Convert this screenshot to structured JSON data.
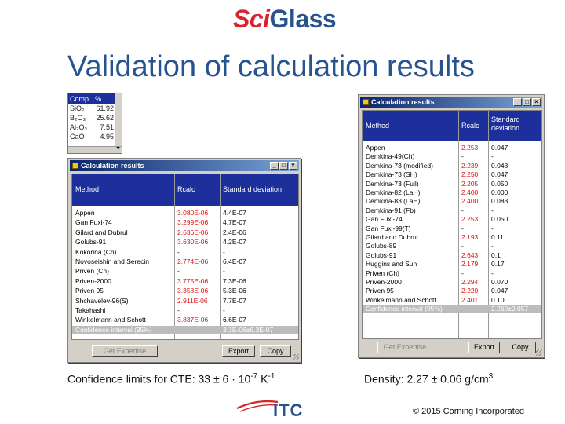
{
  "header": {
    "logo": {
      "part1": "Sci",
      "part2": "Glass"
    },
    "title": "Validation of calculation results"
  },
  "composition_grid": {
    "headers": [
      "Comp.",
      "%"
    ],
    "rows": [
      [
        "SiO₂",
        "61.92"
      ],
      [
        "B₂O₃",
        "25.62"
      ],
      [
        "Al₂O₃",
        "7.51"
      ],
      [
        "CaO",
        "4.95"
      ]
    ]
  },
  "left_window": {
    "title": "Calculation results",
    "headers": {
      "method": "Method",
      "value": "Rcalc",
      "dev": "Standard deviation"
    },
    "rows": [
      {
        "method": "Appen",
        "value": "3.080E-06",
        "dev": "4.4E-07"
      },
      {
        "method": "Gan Fuxi-74",
        "value": "3.299E-06",
        "dev": "4.7E-07"
      },
      {
        "method": "Gilard and Dubrul",
        "value": "2.636E-06",
        "dev": "2.4E-06"
      },
      {
        "method": "Golubs-91",
        "value": "3.630E-06",
        "dev": "4.2E-07"
      },
      {
        "method": "Kokorina (Ch)",
        "value": "-",
        "dev": "-"
      },
      {
        "method": "Novoseishin and Serecin",
        "value": "2.774E-06",
        "dev": "6.4E-07"
      },
      {
        "method": "Priven (Ch)",
        "value": "-",
        "dev": "-"
      },
      {
        "method": "Priven-2000",
        "value": "3.775E-06",
        "dev": "7.3E-06"
      },
      {
        "method": "Priven 95",
        "value": "3.358E-06",
        "dev": "5.3E-06"
      },
      {
        "method": "Shchavelev-96(S)",
        "value": "2.911E-06",
        "dev": "7.7E-07"
      },
      {
        "method": "Takahashi",
        "value": "-",
        "dev": "-"
      },
      {
        "method": "Winkelmann and Schott",
        "value": "3.837E-06",
        "dev": "6.6E-07"
      }
    ],
    "ci_row": {
      "label": "Confidence interval (95%)",
      "value": "3.3E-06±6.3E-07"
    },
    "buttons": {
      "expert": "Get Expertise",
      "export": "Export",
      "copy": "Copy"
    }
  },
  "right_window": {
    "title": "Calculation results",
    "headers": {
      "method": "Method",
      "value": "Rcalc",
      "dev": "Standard deviation"
    },
    "rows": [
      {
        "method": "Appen",
        "value": "2.253",
        "dev": "0.047"
      },
      {
        "method": "Demkina-49(Ch)",
        "value": "-",
        "dev": "-"
      },
      {
        "method": "Demkina-73 (modified)",
        "value": "2.239",
        "dev": "0.048"
      },
      {
        "method": "Demkina-73 (SH)",
        "value": "2.250",
        "dev": "0.047"
      },
      {
        "method": "Demkina-73 (Full)",
        "value": "2.205",
        "dev": "0.050"
      },
      {
        "method": "Demkina-82 (LaH)",
        "value": "2.400",
        "dev": "0.000"
      },
      {
        "method": "Demkina-83 (LaH)",
        "value": "2.400",
        "dev": "0.083"
      },
      {
        "method": "Demkina-91 (Fb)",
        "value": "-",
        "dev": "-"
      },
      {
        "method": "Gan Fuxi-74",
        "value": "2.253",
        "dev": "0.050"
      },
      {
        "method": "Gan Fuxi-99(T)",
        "value": "-",
        "dev": "-"
      },
      {
        "method": "Gilard and Dubrul",
        "value": "2.193",
        "dev": "0.11"
      },
      {
        "method": "Golubs-89",
        "value": "-",
        "dev": "-"
      },
      {
        "method": "Golubs-91",
        "value": "2.643",
        "dev": "0.1"
      },
      {
        "method": "Huggins and Sun",
        "value": "2.179",
        "dev": "0.17"
      },
      {
        "method": "Priven (Ch)",
        "value": "-",
        "dev": "-"
      },
      {
        "method": "Priven-2000",
        "value": "2.294",
        "dev": "0.070"
      },
      {
        "method": "Priven 95",
        "value": "2.220",
        "dev": "0.047"
      },
      {
        "method": "Winkelmann and Schott",
        "value": "2.401",
        "dev": "0.10"
      }
    ],
    "ci_row": {
      "label": "Confidence interval (95%)",
      "value": "2.269±0.057"
    },
    "buttons": {
      "expert": "Get Expertise",
      "export": "Export",
      "copy": "Copy"
    }
  },
  "captions": {
    "cte_prefix": "Confidence limits for CTE: 33 ± 6 · 10",
    "cte_exp1": "-7",
    "cte_unit": " K",
    "cte_exp2": "-1",
    "density_prefix": "Density: 2.27 ± 0.06 g/cm",
    "density_exp": "3"
  },
  "footer": {
    "itc": "ITC",
    "copyright": "© 2015 Corning Incorporated"
  },
  "colors": {
    "title_blue": "#27538f",
    "logo_red": "#d6262b",
    "grid_header": "#1c2f9b",
    "value_red": "#dd1111"
  },
  "icons": [
    "app-icon",
    "minimize-icon",
    "maximize-icon",
    "close-icon",
    "scroll-down-icon",
    "itc-swoosh-icon"
  ]
}
